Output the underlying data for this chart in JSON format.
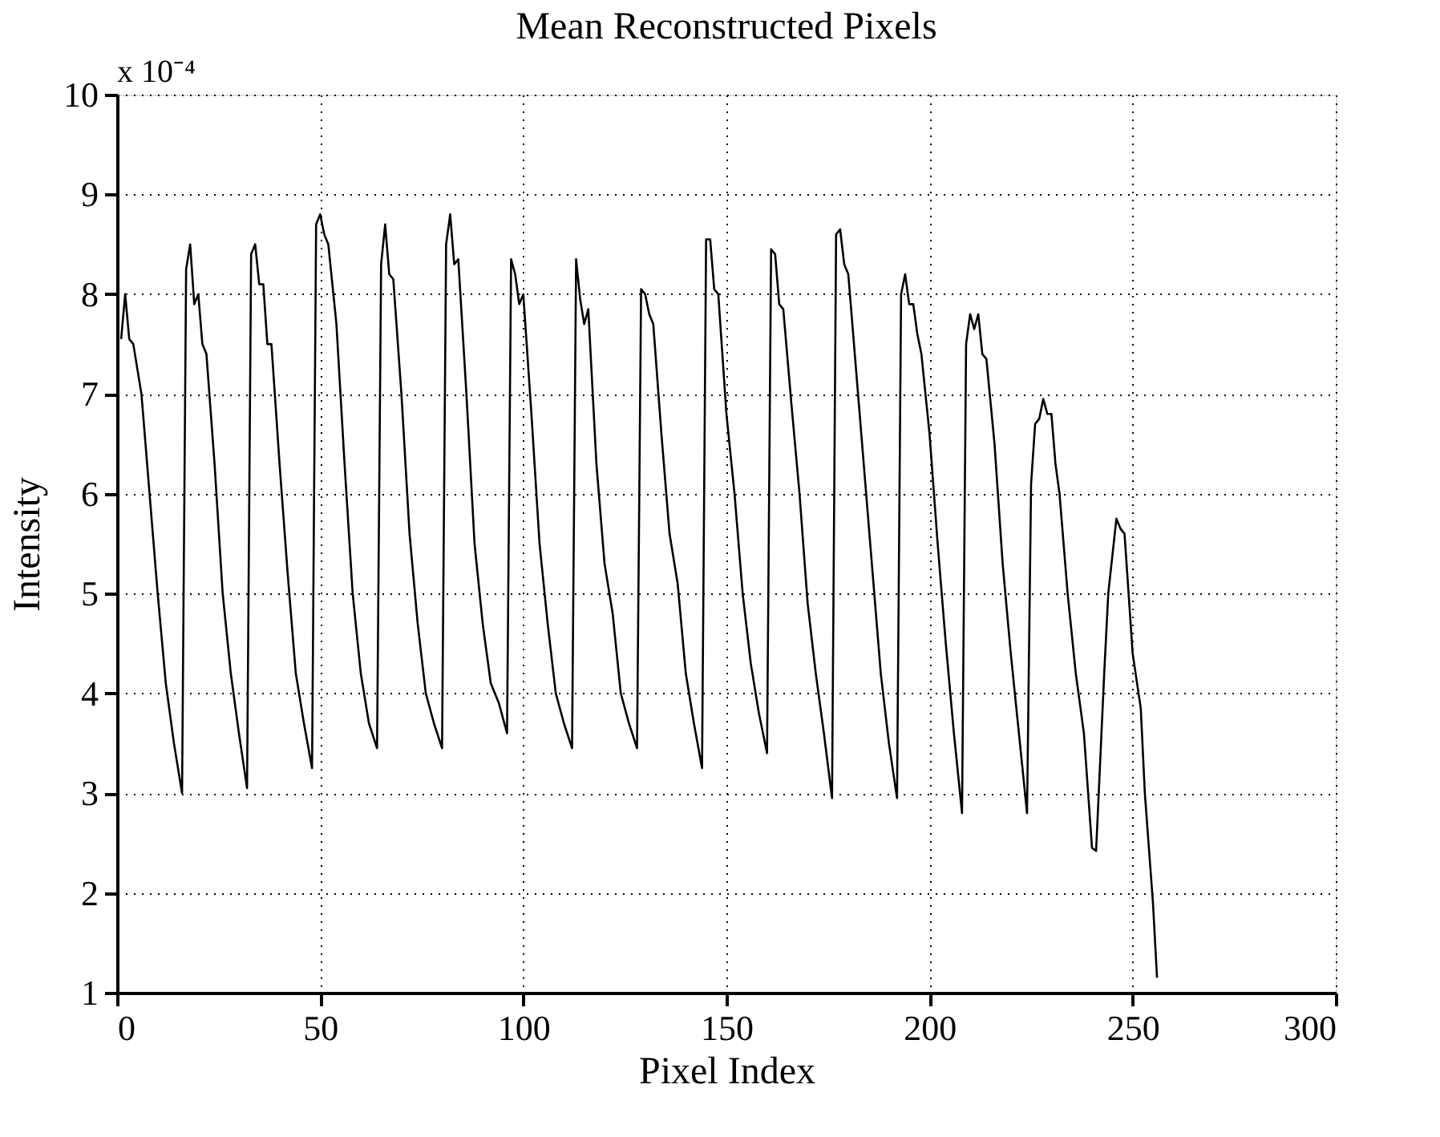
{
  "chart_data": {
    "type": "line",
    "title": "Mean Reconstructed Pixels",
    "xlabel": "Pixel Index",
    "ylabel": "Intensity",
    "annotations": [
      "x 10⁻⁴"
    ],
    "xlim": [
      0,
      300
    ],
    "xticks": [
      0,
      50,
      100,
      150,
      200,
      250,
      300
    ],
    "ylim": [
      1,
      10
    ],
    "yticks": [
      1,
      2,
      3,
      4,
      5,
      6,
      7,
      8,
      9,
      10
    ],
    "grid": true,
    "marker": "none",
    "line_style": "solid",
    "series": [
      {
        "color": "#000000",
        "x": [
          1,
          2,
          3,
          4,
          6,
          8,
          10,
          12,
          14,
          16,
          17,
          18,
          19,
          20,
          21,
          22,
          24,
          26,
          28,
          30,
          32,
          33,
          34,
          35,
          36,
          37,
          38,
          40,
          42,
          44,
          46,
          48,
          49,
          50,
          51,
          52,
          54,
          56,
          58,
          60,
          62,
          64,
          65,
          66,
          67,
          68,
          70,
          72,
          74,
          76,
          78,
          80,
          81,
          82,
          83,
          84,
          86,
          88,
          90,
          92,
          94,
          96,
          97,
          98,
          99,
          100,
          102,
          104,
          106,
          108,
          110,
          112,
          113,
          114,
          115,
          116,
          118,
          120,
          122,
          124,
          126,
          128,
          129,
          130,
          131,
          132,
          134,
          136,
          138,
          140,
          142,
          144,
          145,
          146,
          147,
          148,
          150,
          152,
          154,
          156,
          158,
          160,
          161,
          162,
          163,
          164,
          166,
          168,
          170,
          172,
          174,
          176,
          177,
          178,
          179,
          180,
          182,
          184,
          186,
          188,
          190,
          192,
          193,
          194,
          195,
          196,
          197,
          198,
          200,
          202,
          204,
          206,
          208,
          209,
          210,
          211,
          212,
          213,
          214,
          216,
          218,
          220,
          222,
          224,
          225,
          226,
          227,
          228,
          229,
          230,
          231,
          232,
          234,
          236,
          238,
          240,
          241,
          243,
          244,
          246,
          247,
          248,
          249,
          250,
          252,
          253,
          255,
          256
        ],
        "values": [
          7.55,
          8.0,
          7.55,
          7.5,
          7.0,
          6.0,
          5.0,
          4.1,
          3.5,
          3.0,
          8.25,
          8.5,
          7.9,
          8.0,
          7.5,
          7.4,
          6.3,
          5.0,
          4.2,
          3.6,
          3.05,
          8.4,
          8.5,
          8.1,
          8.1,
          7.5,
          7.5,
          6.3,
          5.2,
          4.2,
          3.7,
          3.25,
          8.7,
          8.8,
          8.6,
          8.5,
          7.7,
          6.3,
          5.0,
          4.2,
          3.7,
          3.45,
          8.3,
          8.7,
          8.2,
          8.15,
          7.0,
          5.6,
          4.7,
          4.0,
          3.7,
          3.45,
          8.5,
          8.8,
          8.3,
          8.35,
          7.0,
          5.5,
          4.7,
          4.1,
          3.9,
          3.6,
          8.35,
          8.2,
          7.9,
          8.0,
          6.8,
          5.5,
          4.7,
          4.0,
          3.7,
          3.45,
          8.35,
          7.95,
          7.7,
          7.85,
          6.3,
          5.3,
          4.8,
          4.0,
          3.7,
          3.45,
          8.05,
          8.0,
          7.8,
          7.7,
          6.6,
          5.6,
          5.1,
          4.2,
          3.7,
          3.25,
          8.55,
          8.55,
          8.05,
          8.0,
          6.8,
          6.0,
          5.0,
          4.3,
          3.8,
          3.4,
          8.45,
          8.4,
          7.9,
          7.85,
          6.9,
          6.0,
          4.9,
          4.2,
          3.6,
          2.95,
          8.6,
          8.65,
          8.3,
          8.2,
          7.2,
          6.2,
          5.2,
          4.2,
          3.5,
          2.95,
          8.0,
          8.2,
          7.9,
          7.9,
          7.6,
          7.4,
          6.6,
          5.5,
          4.5,
          3.6,
          2.8,
          7.5,
          7.8,
          7.65,
          7.8,
          7.4,
          7.35,
          6.5,
          5.3,
          4.4,
          3.6,
          2.8,
          6.1,
          6.7,
          6.75,
          6.95,
          6.8,
          6.8,
          6.3,
          6.0,
          5.0,
          4.2,
          3.6,
          2.45,
          2.42,
          4.2,
          5.0,
          5.75,
          5.65,
          5.6,
          5.0,
          4.4,
          3.85,
          3.0,
          1.9,
          1.15
        ]
      }
    ]
  }
}
